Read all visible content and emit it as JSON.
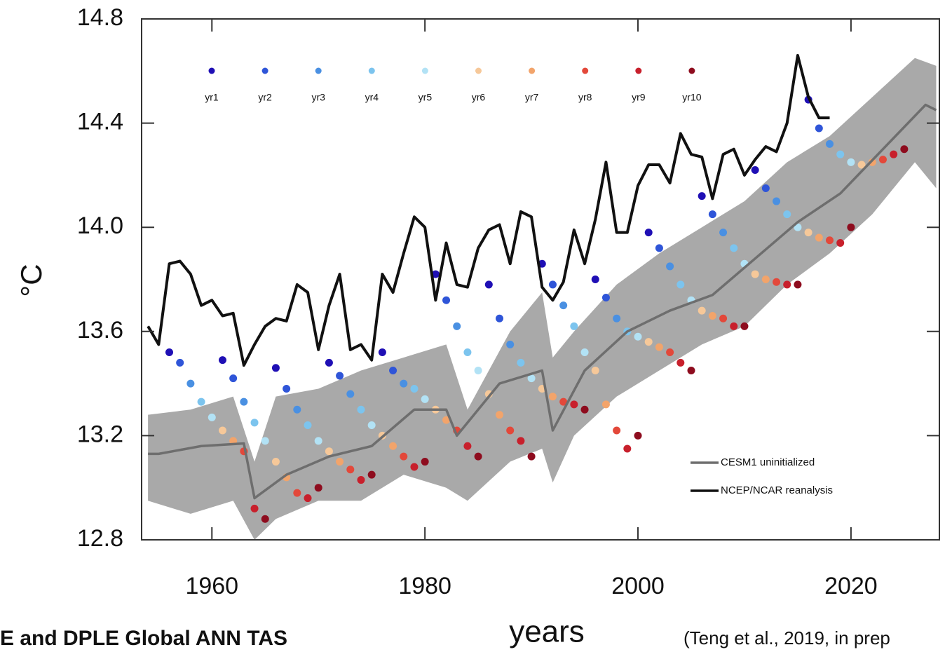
{
  "chart_data": {
    "type": "line",
    "xlabel": "years",
    "ylabel": "°C",
    "footer_left": "E and DPLE Global ANN TAS",
    "footer_right": "(Teng et al., 2019, in prep",
    "xlim": [
      1953.4,
      2028.3
    ],
    "xticks": [
      1960,
      1980,
      2000,
      2020
    ],
    "ylim": [
      12.8,
      14.8
    ],
    "yticks": [
      12.8,
      13.2,
      13.6,
      {
        "value": 14,
        "label": "14.0"
      },
      14.4,
      14.8
    ],
    "band": {
      "color": "#a9a9a9",
      "x": [
        1954,
        1958,
        1962,
        1964,
        1966,
        1970,
        1974,
        1978,
        1982,
        1984,
        1988,
        1991,
        1992,
        1994,
        1998,
        2002,
        2006,
        2010,
        2014,
        2018,
        2022,
        2026,
        2028
      ],
      "high": [
        13.28,
        13.3,
        13.35,
        13.1,
        13.35,
        13.38,
        13.45,
        13.5,
        13.55,
        13.3,
        13.6,
        13.75,
        13.5,
        13.6,
        13.78,
        13.9,
        14.0,
        14.1,
        14.25,
        14.35,
        14.5,
        14.65,
        14.62
      ],
      "low": [
        12.95,
        12.9,
        12.95,
        12.8,
        12.88,
        12.95,
        12.95,
        13.05,
        13.0,
        12.95,
        13.1,
        13.15,
        13.02,
        13.2,
        13.35,
        13.45,
        13.55,
        13.62,
        13.78,
        13.9,
        14.05,
        14.25,
        14.15
      ]
    },
    "series": [
      {
        "name": "CESM1 uninitialized",
        "mark": "line",
        "color": "#6e6e6e",
        "x": [
          1954,
          1955,
          1959,
          1963,
          1964,
          1967,
          1971,
          1975,
          1979,
          1982,
          1983,
          1987,
          1991,
          1992,
          1995,
          1999,
          2003,
          2007,
          2011,
          2015,
          2019,
          2023,
          2027,
          2028
        ],
        "values": [
          13.13,
          13.13,
          13.16,
          13.17,
          12.96,
          13.05,
          13.12,
          13.16,
          13.3,
          13.3,
          13.2,
          13.4,
          13.45,
          13.22,
          13.45,
          13.6,
          13.68,
          13.74,
          13.88,
          14.02,
          14.13,
          14.3,
          14.47,
          14.45
        ]
      },
      {
        "name": "NCEP/NCAR reanalysis",
        "mark": "line",
        "color": "#111111",
        "x": [
          1954,
          1955,
          1956,
          1957,
          1958,
          1959,
          1960,
          1961,
          1962,
          1963,
          1964,
          1965,
          1966,
          1967,
          1968,
          1969,
          1970,
          1971,
          1972,
          1973,
          1974,
          1975,
          1976,
          1977,
          1978,
          1979,
          1980,
          1981,
          1982,
          1983,
          1984,
          1985,
          1986,
          1987,
          1988,
          1989,
          1990,
          1991,
          1992,
          1993,
          1994,
          1995,
          1996,
          1997,
          1998,
          1999,
          2000,
          2001,
          2002,
          2003,
          2004,
          2005,
          2006,
          2007,
          2008,
          2009,
          2010,
          2011,
          2012,
          2013,
          2014,
          2015,
          2016,
          2017,
          2018
        ],
        "values": [
          13.62,
          13.55,
          13.86,
          13.87,
          13.82,
          13.7,
          13.72,
          13.66,
          13.67,
          13.47,
          13.55,
          13.62,
          13.65,
          13.64,
          13.78,
          13.75,
          13.53,
          13.7,
          13.82,
          13.53,
          13.55,
          13.49,
          13.82,
          13.75,
          13.9,
          14.04,
          14.0,
          13.72,
          13.94,
          13.78,
          13.77,
          13.92,
          13.99,
          14.01,
          13.86,
          14.06,
          14.04,
          13.77,
          13.72,
          13.79,
          13.99,
          13.86,
          14.03,
          14.25,
          13.98,
          13.98,
          14.16,
          14.24,
          14.24,
          14.17,
          14.36,
          14.28,
          14.27,
          14.11,
          14.28,
          14.3,
          14.2,
          14.26,
          14.31,
          14.29,
          14.4,
          14.66,
          14.5,
          14.42,
          14.42
        ]
      },
      {
        "name": "yr1",
        "mark": "dot",
        "color": "#1f0fb5",
        "x": [
          1956,
          1961,
          1966,
          1971,
          1976,
          1981,
          1986,
          1991,
          1996,
          2001,
          2006,
          2011,
          2016
        ],
        "values": [
          13.52,
          13.49,
          13.46,
          13.48,
          13.52,
          13.82,
          13.78,
          13.86,
          13.8,
          13.98,
          14.12,
          14.22,
          14.49
        ]
      },
      {
        "name": "yr2",
        "mark": "dot",
        "color": "#2f55d8",
        "x": [
          1957,
          1962,
          1967,
          1972,
          1977,
          1982,
          1987,
          1992,
          1997,
          2002,
          2007,
          2012,
          2017
        ],
        "values": [
          13.48,
          13.42,
          13.38,
          13.43,
          13.45,
          13.72,
          13.65,
          13.78,
          13.73,
          13.92,
          14.05,
          14.15,
          14.38
        ]
      },
      {
        "name": "yr3",
        "mark": "dot",
        "color": "#4a90e2",
        "x": [
          1958,
          1963,
          1968,
          1973,
          1978,
          1983,
          1988,
          1993,
          1998,
          2003,
          2008,
          2013,
          2018
        ],
        "values": [
          13.4,
          13.33,
          13.3,
          13.36,
          13.4,
          13.62,
          13.55,
          13.7,
          13.65,
          13.85,
          13.98,
          14.1,
          14.32
        ]
      },
      {
        "name": "yr4",
        "mark": "dot",
        "color": "#7cc4ee",
        "x": [
          1959,
          1964,
          1969,
          1974,
          1979,
          1984,
          1989,
          1994,
          1999,
          2004,
          2009,
          2014,
          2019
        ],
        "values": [
          13.33,
          13.25,
          13.24,
          13.3,
          13.38,
          13.52,
          13.48,
          13.62,
          13.6,
          13.78,
          13.92,
          14.05,
          14.28
        ]
      },
      {
        "name": "yr5",
        "mark": "dot",
        "color": "#b2e2f5",
        "x": [
          1960,
          1965,
          1970,
          1975,
          1980,
          1985,
          1990,
          1995,
          2000,
          2005,
          2010,
          2015,
          2020
        ],
        "values": [
          13.27,
          13.18,
          13.18,
          13.24,
          13.34,
          13.45,
          13.42,
          13.52,
          13.58,
          13.72,
          13.86,
          14.0,
          14.25
        ]
      },
      {
        "name": "yr6",
        "mark": "dot",
        "color": "#f6c899",
        "x": [
          1961,
          1966,
          1971,
          1976,
          1981,
          1986,
          1991,
          1996,
          2001,
          2006,
          2011,
          2016,
          2021
        ],
        "values": [
          13.22,
          13.1,
          13.14,
          13.2,
          13.3,
          13.36,
          13.38,
          13.45,
          13.56,
          13.68,
          13.82,
          13.98,
          14.24
        ]
      },
      {
        "name": "yr7",
        "mark": "dot",
        "color": "#f2a46b",
        "x": [
          1962,
          1967,
          1972,
          1977,
          1982,
          1987,
          1992,
          1997,
          2002,
          2007,
          2012,
          2017,
          2022
        ],
        "values": [
          13.18,
          13.04,
          13.1,
          13.16,
          13.26,
          13.28,
          13.35,
          13.32,
          13.54,
          13.66,
          13.8,
          13.96,
          14.25
        ]
      },
      {
        "name": "yr8",
        "mark": "dot",
        "color": "#e3483a",
        "x": [
          1963,
          1968,
          1973,
          1978,
          1983,
          1988,
          1993,
          1998,
          2003,
          2008,
          2013,
          2018,
          2023
        ],
        "values": [
          13.14,
          12.98,
          13.07,
          13.12,
          13.22,
          13.22,
          13.33,
          13.22,
          13.52,
          13.65,
          13.79,
          13.95,
          14.26
        ]
      },
      {
        "name": "yr9",
        "mark": "dot",
        "color": "#c8202c",
        "x": [
          1964,
          1969,
          1974,
          1979,
          1984,
          1989,
          1994,
          1999,
          2004,
          2009,
          2014,
          2019,
          2024
        ],
        "values": [
          12.92,
          12.96,
          13.03,
          13.08,
          13.16,
          13.18,
          13.32,
          13.15,
          13.48,
          13.62,
          13.78,
          13.94,
          14.28
        ]
      },
      {
        "name": "yr10",
        "mark": "dot",
        "color": "#8e0c1e",
        "x": [
          1965,
          1970,
          1975,
          1980,
          1985,
          1990,
          1995,
          2000,
          2005,
          2010,
          2015,
          2020,
          2025
        ],
        "values": [
          12.88,
          13.0,
          13.05,
          13.1,
          13.12,
          13.12,
          13.3,
          13.2,
          13.45,
          13.62,
          13.78,
          14.0,
          14.3
        ]
      }
    ]
  }
}
